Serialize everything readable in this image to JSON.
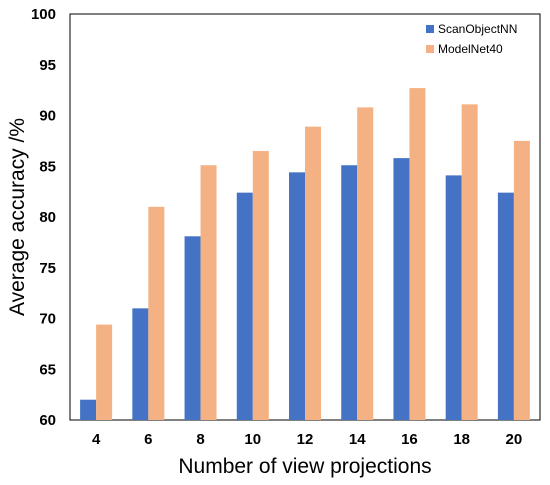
{
  "chart_data": {
    "type": "bar",
    "categories": [
      "4",
      "6",
      "8",
      "10",
      "12",
      "14",
      "16",
      "18",
      "20"
    ],
    "series": [
      {
        "name": "ScanObjectNN",
        "color": "#4472C4",
        "values": [
          62.0,
          71.0,
          78.1,
          82.4,
          84.4,
          85.1,
          85.8,
          84.1,
          82.4
        ]
      },
      {
        "name": "ModelNet40",
        "color": "#F4B183",
        "values": [
          69.4,
          81.0,
          85.1,
          86.5,
          88.9,
          90.8,
          92.7,
          91.1,
          87.5
        ]
      }
    ],
    "xlabel": "Number of view projections",
    "ylabel": "Average accuracy /%",
    "ylim": [
      60,
      100
    ],
    "yticks": [
      60,
      65,
      70,
      75,
      80,
      85,
      90,
      95,
      100
    ],
    "grid": false,
    "legend": "top-right"
  }
}
